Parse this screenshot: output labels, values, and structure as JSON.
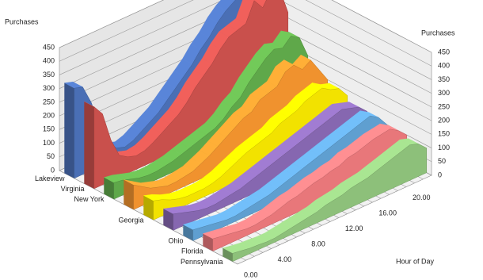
{
  "chart_data": {
    "type": "ribbon3d",
    "y_label": "Purchases",
    "y2_label": "Purchases",
    "x_label": "Hour of Day",
    "categories": [
      "0.00",
      null,
      null,
      null,
      "4.00",
      null,
      null,
      null,
      "8.00",
      null,
      null,
      null,
      "12.00",
      null,
      null,
      null,
      "16.00",
      null,
      null,
      null,
      "20.00",
      null,
      null,
      null
    ],
    "ylim": [
      0,
      450
    ],
    "yticks": [
      0,
      50,
      100,
      150,
      200,
      250,
      300,
      350,
      400,
      450
    ],
    "grid": true,
    "series": [
      {
        "name": "Lakeview",
        "color": "#4a6fb5",
        "values": [
          330,
          320,
          250,
          150,
          80,
          40,
          30,
          40,
          60,
          80,
          100,
          130,
          160,
          190,
          220,
          260,
          290,
          330,
          360,
          380,
          400,
          370,
          410,
          300
        ]
      },
      {
        "name": "Virginia",
        "color": "#c9504c",
        "values": [
          300,
          260,
          150,
          80,
          60,
          50,
          55,
          70,
          90,
          110,
          130,
          160,
          200,
          230,
          260,
          300,
          330,
          340,
          350,
          420,
          380,
          430,
          420,
          320
        ]
      },
      {
        "name": "New York",
        "color": "#5fa84a",
        "values": [
          60,
          55,
          45,
          35,
          30,
          30,
          35,
          40,
          50,
          60,
          70,
          80,
          90,
          110,
          140,
          160,
          200,
          230,
          260,
          280,
          270,
          300,
          280,
          200
        ]
      },
      {
        "name": null,
        "color": "#f0922e",
        "values": [
          90,
          70,
          50,
          40,
          30,
          30,
          35,
          40,
          55,
          70,
          90,
          110,
          130,
          150,
          160,
          190,
          200,
          210,
          250,
          260,
          230,
          250,
          200,
          150
        ]
      },
      {
        "name": "Georgia",
        "color": "#f2e200",
        "values": [
          70,
          60,
          45,
          35,
          30,
          30,
          30,
          35,
          45,
          60,
          75,
          90,
          100,
          110,
          120,
          140,
          150,
          160,
          180,
          190,
          200,
          180,
          170,
          130
        ]
      },
      {
        "name": null,
        "color": "#8667b0",
        "values": [
          60,
          50,
          40,
          30,
          25,
          25,
          30,
          35,
          40,
          50,
          60,
          70,
          80,
          90,
          100,
          110,
          120,
          130,
          140,
          150,
          160,
          150,
          140,
          110
        ]
      },
      {
        "name": "Ohio",
        "color": "#5f9fd0",
        "values": [
          40,
          35,
          30,
          25,
          20,
          20,
          25,
          30,
          35,
          40,
          50,
          60,
          70,
          80,
          90,
          100,
          110,
          120,
          130,
          140,
          150,
          160,
          140,
          100
        ]
      },
      {
        "name": "Florida",
        "color": "#e8777a",
        "values": [
          45,
          40,
          35,
          30,
          25,
          25,
          30,
          35,
          45,
          55,
          60,
          70,
          80,
          85,
          95,
          100,
          115,
          120,
          130,
          140,
          145,
          150,
          130,
          100
        ]
      },
      {
        "name": "Pennsylvania",
        "color": "#8dc07a",
        "values": [
          30,
          25,
          20,
          18,
          15,
          15,
          20,
          25,
          30,
          35,
          40,
          50,
          55,
          60,
          70,
          75,
          80,
          90,
          100,
          110,
          120,
          130,
          120,
          90
        ]
      }
    ]
  }
}
